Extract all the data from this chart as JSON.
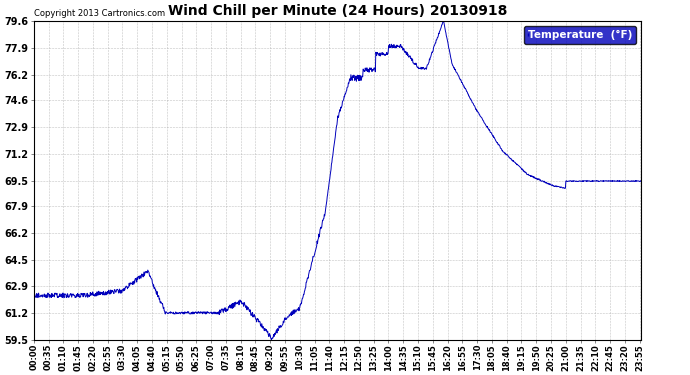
{
  "title": "Wind Chill per Minute (24 Hours) 20130918",
  "copyright_text": "Copyright 2013 Cartronics.com",
  "legend_label": "Temperature  (°F)",
  "y_ticks": [
    59.5,
    61.2,
    62.9,
    64.5,
    66.2,
    67.9,
    69.5,
    71.2,
    72.9,
    74.6,
    76.2,
    77.9,
    79.6
  ],
  "ylim": [
    59.5,
    79.6
  ],
  "line_color": "#0000bb",
  "bg_color": "#ffffff",
  "grid_color": "#aaaaaa",
  "title_color": "#000000",
  "legend_bg": "#0000bb",
  "legend_text_color": "#ffffff",
  "x_tick_interval_minutes": 35,
  "total_minutes": 1440,
  "figsize": [
    6.9,
    3.75
  ],
  "dpi": 100
}
